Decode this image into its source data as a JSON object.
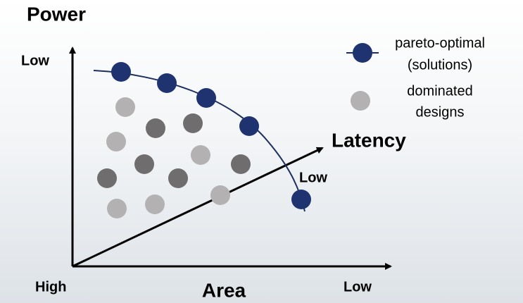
{
  "axes": {
    "power": {
      "title": "Power",
      "end_label": "Low"
    },
    "area": {
      "title": "Area",
      "end_label": "Low"
    },
    "latency": {
      "title": "Latency",
      "end_label": "Low"
    },
    "origin_label": "High"
  },
  "legend": [
    {
      "lines": [
        "pareto-optimal",
        "(solutions)"
      ]
    },
    {
      "lines": [
        "dominated",
        "designs"
      ]
    }
  ]
}
